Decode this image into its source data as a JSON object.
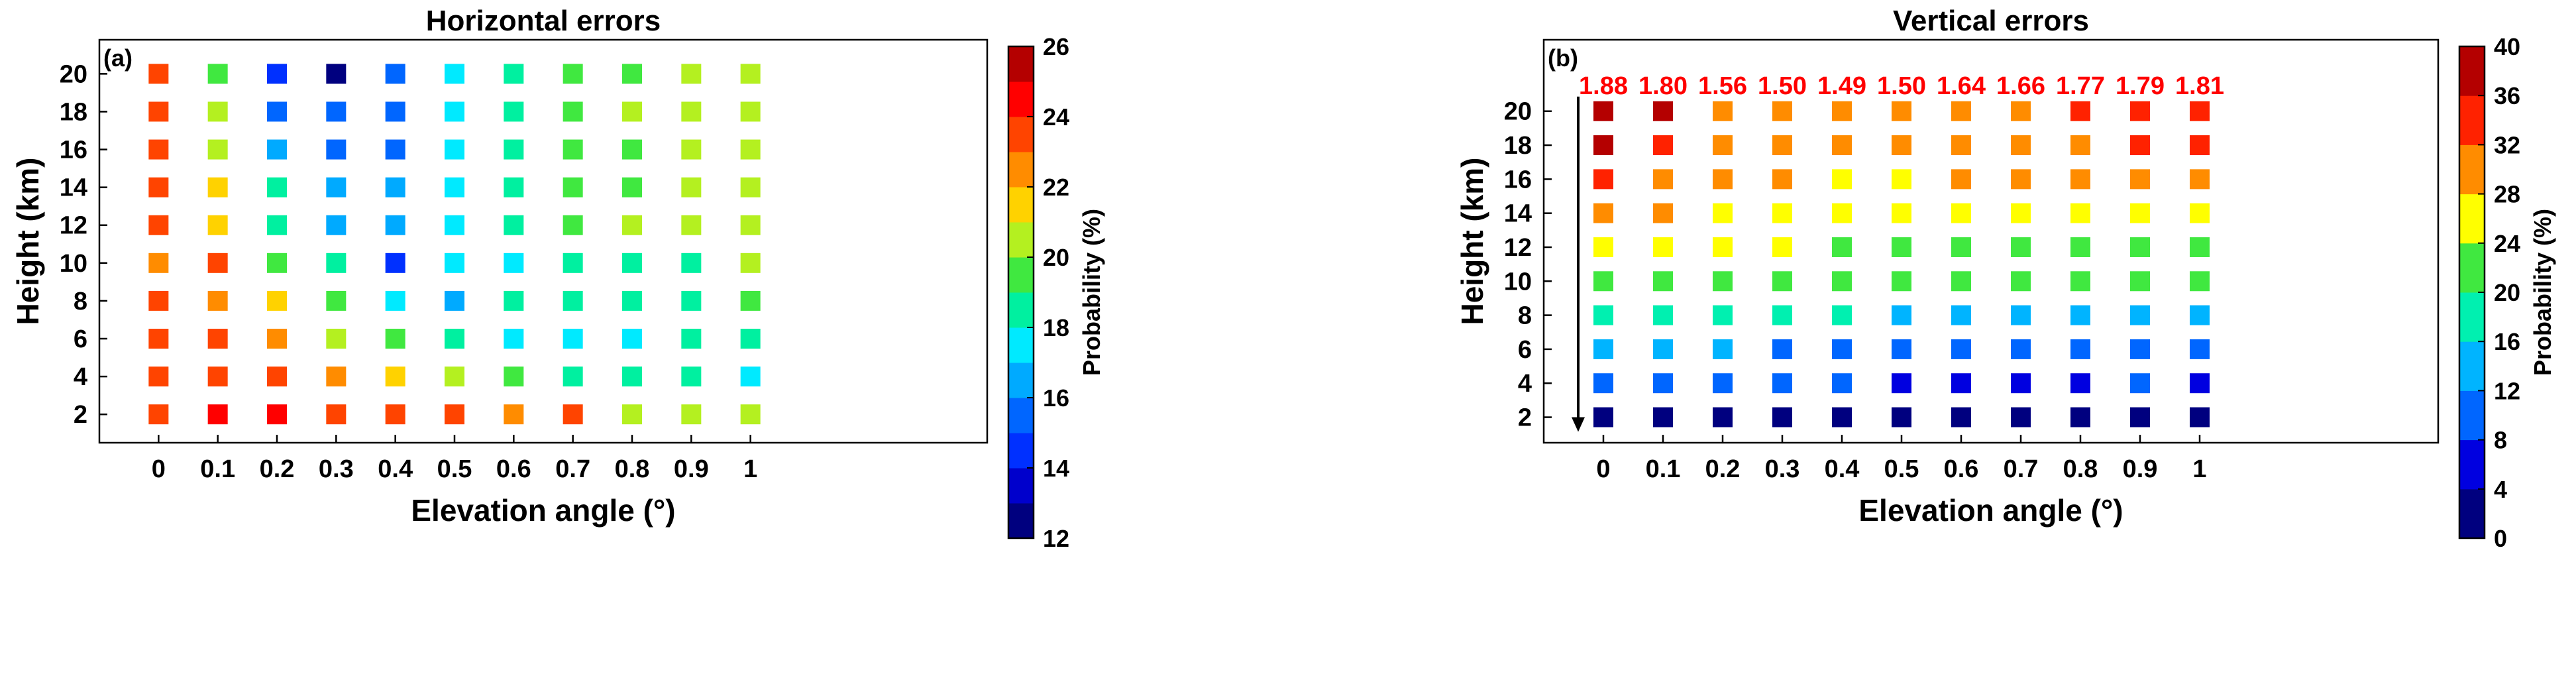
{
  "chart_data": [
    {
      "type": "heatmap",
      "panel_label": "(a)",
      "title": "Horizontal errors",
      "xlabel": "Elevation angle (°)",
      "ylabel": "Height (km)",
      "colorbar_label": "Probability (%)",
      "x": [
        0,
        0.1,
        0.2,
        0.3,
        0.4,
        0.5,
        0.6,
        0.7,
        0.8,
        0.9,
        1
      ],
      "x_tick_labels": [
        "0",
        "0.1",
        "0.2",
        "0.3",
        "0.4",
        "0.5",
        "0.6",
        "0.7",
        "0.8",
        "0.9",
        "1"
      ],
      "y": [
        2,
        4,
        6,
        8,
        10,
        12,
        14,
        16,
        18,
        20
      ],
      "y_tick_labels": [
        "2",
        "4",
        "6",
        "8",
        "10",
        "12",
        "14",
        "16",
        "18",
        "20"
      ],
      "xlim": [
        -0.1,
        1.4
      ],
      "ylim": [
        0.5,
        21.8
      ],
      "colorbar": {
        "min": 12,
        "max": 26,
        "step": 1,
        "tick_values": [
          12,
          14,
          16,
          18,
          20,
          22,
          24,
          26
        ],
        "tick_labels": [
          "12",
          "14",
          "16",
          "18",
          "20",
          "22",
          "24",
          "26"
        ],
        "colors": [
          "#00007f",
          "#0000cc",
          "#0030ff",
          "#0066ff",
          "#00aaff",
          "#00eaff",
          "#00f0a0",
          "#40e840",
          "#b4f020",
          "#ffd200",
          "#ff8c00",
          "#ff4400",
          "#ff0000",
          "#b40000"
        ]
      },
      "values": [
        [
          23.5,
          24.5,
          24,
          23,
          23,
          23,
          22,
          23,
          20,
          20,
          20
        ],
        [
          23,
          23,
          23,
          22,
          21,
          20,
          19,
          18,
          18,
          18,
          17
        ],
        [
          23,
          23,
          22,
          20,
          19,
          18,
          17,
          17,
          17,
          18,
          18
        ],
        [
          23,
          22,
          21,
          19,
          17,
          16,
          18,
          18,
          18,
          18,
          19
        ],
        [
          22,
          23,
          19,
          18,
          14,
          17,
          17,
          18,
          18,
          18,
          20
        ],
        [
          23,
          21,
          18,
          16,
          16,
          17,
          18,
          19,
          20,
          20,
          20
        ],
        [
          23,
          21,
          18,
          16,
          16,
          17,
          18,
          19,
          19,
          20,
          20
        ],
        [
          23,
          20,
          16,
          15,
          15,
          17,
          18,
          19,
          19,
          20,
          20
        ],
        [
          23,
          20,
          15,
          15,
          15,
          17,
          18,
          19,
          20,
          20,
          20
        ],
        [
          23,
          19,
          14,
          12.5,
          15,
          17,
          18,
          19,
          19,
          20,
          20
        ]
      ]
    },
    {
      "type": "heatmap",
      "panel_label": "(b)",
      "title": "Vertical errors",
      "xlabel": "Elevation angle (°)",
      "ylabel": "Height (km)",
      "colorbar_label": "Probability (%)",
      "x": [
        0,
        0.1,
        0.2,
        0.3,
        0.4,
        0.5,
        0.6,
        0.7,
        0.8,
        0.9,
        1
      ],
      "x_tick_labels": [
        "0",
        "0.1",
        "0.2",
        "0.3",
        "0.4",
        "0.5",
        "0.6",
        "0.7",
        "0.8",
        "0.9",
        "1"
      ],
      "y": [
        2,
        4,
        6,
        8,
        10,
        12,
        14,
        16,
        18,
        20
      ],
      "y_tick_labels": [
        "2",
        "4",
        "6",
        "8",
        "10",
        "12",
        "14",
        "16",
        "18",
        "20"
      ],
      "xlim": [
        -0.1,
        1.4
      ],
      "ylim": [
        0.5,
        24.2
      ],
      "colorbar": {
        "min": 0,
        "max": 40,
        "step": 4,
        "tick_values": [
          0,
          4,
          8,
          12,
          16,
          20,
          24,
          28,
          32,
          36,
          40
        ],
        "tick_labels": [
          "0",
          "4",
          "8",
          "12",
          "16",
          "20",
          "24",
          "28",
          "32",
          "36",
          "40"
        ],
        "colors": [
          "#00007f",
          "#0000e0",
          "#0066ff",
          "#00b4ff",
          "#00f0b0",
          "#40e840",
          "#ffff00",
          "#ff8c00",
          "#ff2200",
          "#b40000"
        ]
      },
      "column_annotations": [
        "1.88",
        "1.80",
        "1.56",
        "1.50",
        "1.49",
        "1.50",
        "1.64",
        "1.66",
        "1.77",
        "1.79",
        "1.81"
      ],
      "annotation_color": "#ff0000",
      "arrow": "downward",
      "values": [
        [
          2,
          2,
          2,
          2,
          2,
          2,
          2,
          2,
          2,
          2,
          2
        ],
        [
          10,
          10,
          10,
          10,
          10,
          6,
          6,
          6,
          6,
          10,
          6
        ],
        [
          14,
          14,
          14,
          10,
          10,
          10,
          10,
          10,
          10,
          10,
          10
        ],
        [
          18,
          18,
          18,
          18,
          18,
          14,
          14,
          14,
          14,
          14,
          14
        ],
        [
          22,
          22,
          22,
          22,
          22,
          22,
          22,
          22,
          22,
          22,
          22
        ],
        [
          26,
          26,
          26,
          26,
          22,
          22,
          22,
          22,
          22,
          22,
          22
        ],
        [
          30,
          30,
          26,
          26,
          26,
          26,
          26,
          26,
          26,
          26,
          26
        ],
        [
          34,
          30,
          30,
          30,
          26,
          26,
          30,
          30,
          30,
          30,
          30
        ],
        [
          38,
          34,
          30,
          30,
          30,
          30,
          30,
          30,
          30,
          34,
          34
        ],
        [
          38,
          38,
          30,
          30,
          30,
          30,
          30,
          30,
          34,
          34,
          34
        ]
      ]
    }
  ]
}
